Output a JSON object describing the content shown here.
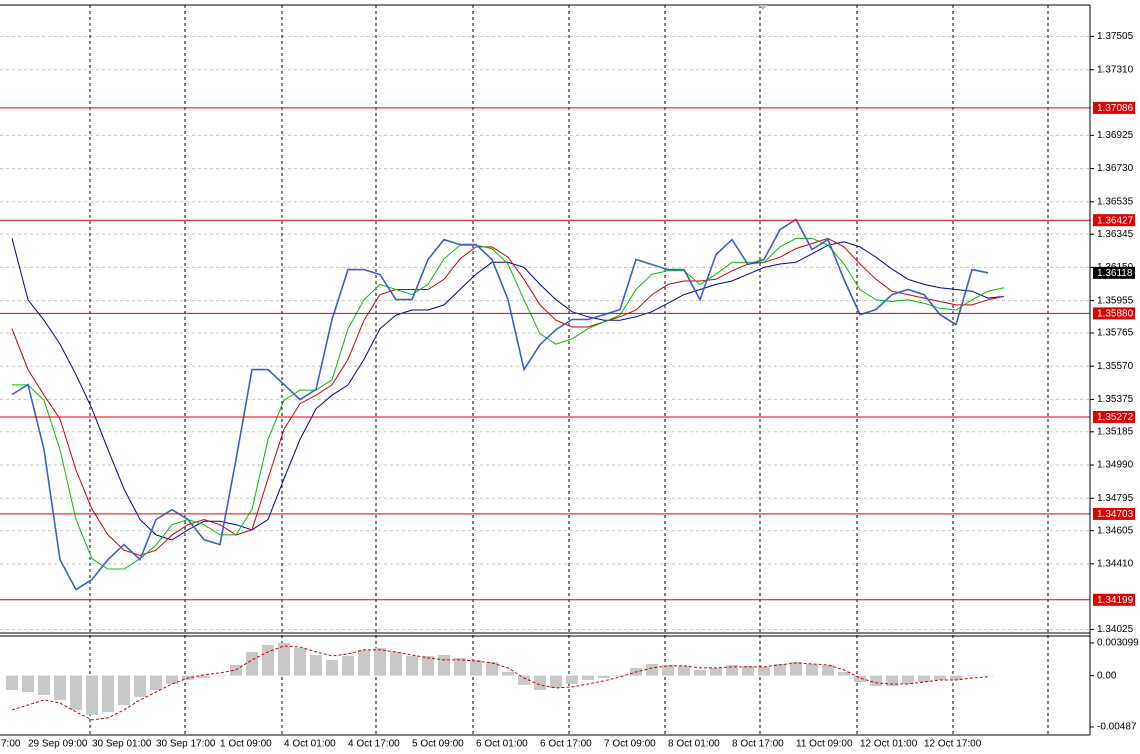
{
  "chart_data": [
    {
      "type": "line",
      "categories": [
        "7:00",
        null,
        null,
        null,
        "29 Sep 09:00",
        null,
        null,
        null,
        "30 Sep 01:00",
        null,
        null,
        null,
        "30 Sep 17:00",
        null,
        null,
        null,
        "1 Oct 09:00",
        null,
        null,
        null,
        "4 Oct 01:00",
        null,
        null,
        null,
        "4 Oct 17:00",
        null,
        null,
        null,
        "5 Oct 09:00",
        null,
        null,
        null,
        "6 Oct 01:00",
        null,
        null,
        null,
        "6 Oct 17:00",
        null,
        null,
        null,
        "7 Oct 09:00",
        null,
        null,
        null,
        "8 Oct 01:00",
        null,
        null,
        null,
        "8 Oct 17:00",
        null,
        null,
        null,
        "11 Oct 09:00",
        null,
        null,
        null,
        "12 Oct 01:00",
        null,
        null,
        null,
        "12 Oct 17:00",
        null,
        null,
        null,
        null,
        null
      ],
      "series": [
        {
          "color": "#3a5fcd",
          "width": 1.6,
          "values": [
            null,
            null,
            null,
            1.35404,
            1.35462,
            1.35081,
            1.34435,
            1.34259,
            1.34318,
            1.34435,
            1.34523,
            1.34435,
            1.3467,
            1.34728,
            1.3467,
            1.34552,
            1.34523,
            1.35022,
            1.3555,
            1.3555,
            1.35462,
            1.35374,
            1.35433,
            1.35844,
            1.36137,
            1.36137,
            1.36108,
            1.35961,
            1.35961,
            1.36196,
            1.36313,
            1.36284,
            1.36284,
            1.36196,
            1.35961,
            1.3555,
            1.35697,
            1.35785,
            1.35844,
            1.35844,
            1.35873,
            1.35902,
            1.36196,
            1.36167,
            1.36137,
            1.36137,
            1.35961,
            1.36225,
            1.36313,
            1.36167,
            1.36196,
            1.36372,
            1.36431,
            1.36255,
            1.36313,
            1.36079,
            1.35873,
            1.35902,
            1.3599,
            1.3602,
            1.3599,
            1.35873,
            1.35814,
            1.36137,
            1.36118,
            null
          ]
        },
        {
          "color": "#00c000",
          "width": 1,
          "values": [
            null,
            null,
            null,
            1.3546,
            1.3546,
            1.3537,
            1.3508,
            1.3467,
            1.3444,
            1.3438,
            1.3438,
            1.3444,
            1.3452,
            1.3464,
            1.3467,
            1.3464,
            1.3458,
            1.3458,
            1.3473,
            1.3514,
            1.3537,
            1.3543,
            1.3543,
            1.3549,
            1.3579,
            1.3596,
            1.3605,
            1.3602,
            1.3599,
            1.3605,
            1.362,
            1.3628,
            1.3628,
            1.3626,
            1.3617,
            1.3596,
            1.3576,
            1.357,
            1.3573,
            1.3579,
            1.3583,
            1.3587,
            1.3602,
            1.3611,
            1.3613,
            1.3613,
            1.3605,
            1.3611,
            1.3618,
            1.3618,
            1.3618,
            1.3627,
            1.3632,
            1.3632,
            1.3628,
            1.3617,
            1.3602,
            1.3596,
            1.3595,
            1.3596,
            1.3594,
            1.3591,
            1.359,
            1.3596,
            1.3601,
            1.3603
          ]
        },
        {
          "color": "#d00000",
          "width": 1,
          "values": [
            null,
            null,
            null,
            1.3579,
            1.3555,
            1.354,
            1.3526,
            1.3496,
            1.3473,
            1.3458,
            1.3449,
            1.3446,
            1.3449,
            1.3458,
            1.3464,
            1.3467,
            1.3464,
            1.3458,
            1.3461,
            1.3491,
            1.352,
            1.3535,
            1.354,
            1.3546,
            1.3561,
            1.3584,
            1.3599,
            1.3602,
            1.3602,
            1.3602,
            1.3608,
            1.362,
            1.3627,
            1.3627,
            1.3621,
            1.3608,
            1.3593,
            1.3584,
            1.358,
            1.358,
            1.3583,
            1.3586,
            1.359,
            1.3599,
            1.3605,
            1.3607,
            1.3607,
            1.3608,
            1.3613,
            1.3617,
            1.3618,
            1.3621,
            1.3626,
            1.3629,
            1.3632,
            1.3627,
            1.3617,
            1.3608,
            1.3601,
            1.3599,
            1.3597,
            1.3595,
            1.3593,
            1.3593,
            1.3596,
            1.3598
          ]
        },
        {
          "color": "#0000a0",
          "width": 1,
          "values": [
            null,
            null,
            null,
            1.3632,
            1.3596,
            1.3584,
            1.357,
            1.3552,
            1.3532,
            1.3508,
            1.3485,
            1.3467,
            1.3458,
            1.3455,
            1.3461,
            1.3466,
            1.3466,
            1.3464,
            1.3461,
            1.3467,
            1.3491,
            1.3514,
            1.3532,
            1.354,
            1.3546,
            1.3561,
            1.3579,
            1.3587,
            1.359,
            1.359,
            1.3593,
            1.3602,
            1.3611,
            1.3618,
            1.3618,
            1.3615,
            1.3605,
            1.3596,
            1.3589,
            1.3586,
            1.3584,
            1.3584,
            1.3586,
            1.3589,
            1.3594,
            1.3599,
            1.3602,
            1.3605,
            1.3607,
            1.3611,
            1.3615,
            1.3617,
            1.3618,
            1.3623,
            1.3628,
            1.363,
            1.3627,
            1.3621,
            1.3614,
            1.3608,
            1.3605,
            1.3603,
            1.3602,
            1.3601,
            1.3597,
            1.3598
          ]
        }
      ],
      "ylim": [
        1.3401,
        1.3769
      ],
      "yticks": [
        1.37505,
        {
          "value": 1.3731,
          "label": "1.37310"
        },
        1.36925,
        {
          "value": 1.3673,
          "label": "1.36730"
        },
        1.36535,
        1.36345,
        {
          "value": 1.3615,
          "label": "1.36150"
        },
        1.35955,
        1.35765,
        {
          "value": 1.3557,
          "label": "1.35570"
        },
        1.35375,
        1.35185,
        {
          "value": 1.3499,
          "label": "1.34990"
        },
        1.34795,
        1.34605,
        {
          "value": 1.3441,
          "label": "1.34410"
        },
        1.34025
      ],
      "grid": true,
      "levels": [
        1.37086,
        1.36427,
        {
          "value": 1.3588,
          "label": "1.35880"
        },
        1.35272,
        1.34703,
        1.34199
      ],
      "level_color": "#e00000",
      "current_price": 1.36118
    },
    {
      "type": "bar",
      "color": "#c8c8c8",
      "values": [
        null,
        null,
        null,
        -0.00136,
        -0.00155,
        -0.00183,
        -0.00231,
        -0.00325,
        -0.00373,
        -0.00344,
        -0.00278,
        -0.00202,
        -0.00136,
        -0.00079,
        -0.00041,
        -0.00022,
        -3e-05,
        0.00102,
        0.00225,
        0.00291,
        0.0031,
        0.00263,
        0.00196,
        0.00149,
        0.00187,
        0.00244,
        0.00263,
        0.00225,
        0.00187,
        0.00187,
        0.00196,
        0.00168,
        0.00149,
        0.0013,
        0.00035,
        -0.00088,
        -0.00136,
        -0.00117,
        -0.00079,
        -0.00041,
        -0.00022,
        -3e-05,
        0.00073,
        0.00111,
        0.00102,
        0.00092,
        0.00054,
        0.00073,
        0.00102,
        0.00092,
        0.00083,
        0.00111,
        0.0013,
        0.00111,
        0.00102,
        0.00035,
        -0.0006,
        -0.00098,
        -0.00098,
        -0.00079,
        -0.0006,
        -0.00041,
        -0.00041,
        -3e-05,
        -3e-05,
        null
      ],
      "series": [
        {
          "color": "#d00000",
          "dashed": true,
          "values": [
            null,
            null,
            null,
            -0.00325,
            -0.00278,
            -0.00231,
            -0.00259,
            -0.00344,
            -0.0042,
            -0.00401,
            -0.00325,
            -0.00231,
            -0.00155,
            -0.00079,
            -0.00022,
            7e-05,
            0.00026,
            0.00054,
            0.00149,
            0.00225,
            0.00282,
            0.00272,
            0.00225,
            0.00187,
            0.00206,
            0.00244,
            0.00244,
            0.00225,
            0.00196,
            0.00168,
            0.00149,
            0.00149,
            0.00139,
            0.00121,
            0.00073,
            -0.00022,
            -0.00088,
            -0.00117,
            -0.00107,
            -0.00079,
            -0.0005,
            -0.00012,
            0.00035,
            0.00073,
            0.00092,
            0.00092,
            0.00073,
            0.00073,
            0.00083,
            0.00083,
            0.00083,
            0.00102,
            0.00121,
            0.00111,
            0.00102,
            0.00054,
            -0.00022,
            -0.00069,
            -0.00079,
            -0.00079,
            -0.0006,
            -0.00041,
            -0.00041,
            -0.00022,
            -0.00012,
            null
          ]
        }
      ],
      "ylim": [
        -0.00563,
        0.00376
      ],
      "yticks": [
        0.003099,
        {
          "value": 0,
          "label": "0.00"
        },
        -0.00487
      ]
    }
  ]
}
